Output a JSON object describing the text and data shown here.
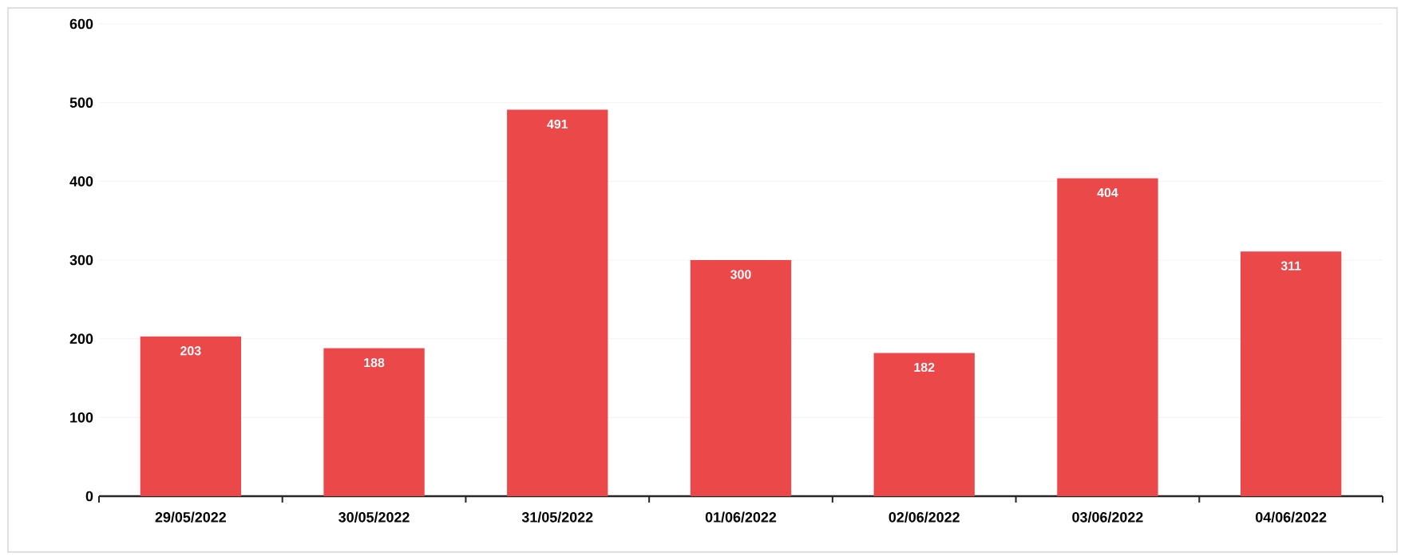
{
  "chart_data": {
    "type": "bar",
    "categories": [
      "29/05/2022",
      "30/05/2022",
      "31/05/2022",
      "01/06/2022",
      "02/06/2022",
      "03/06/2022",
      "04/06/2022"
    ],
    "values": [
      203,
      188,
      491,
      300,
      182,
      404,
      311
    ],
    "color": "#eb484a",
    "ylim": [
      0,
      600
    ],
    "yticks": [
      0,
      100,
      200,
      300,
      400,
      500,
      600
    ],
    "grid": "y",
    "data_labels": true
  }
}
